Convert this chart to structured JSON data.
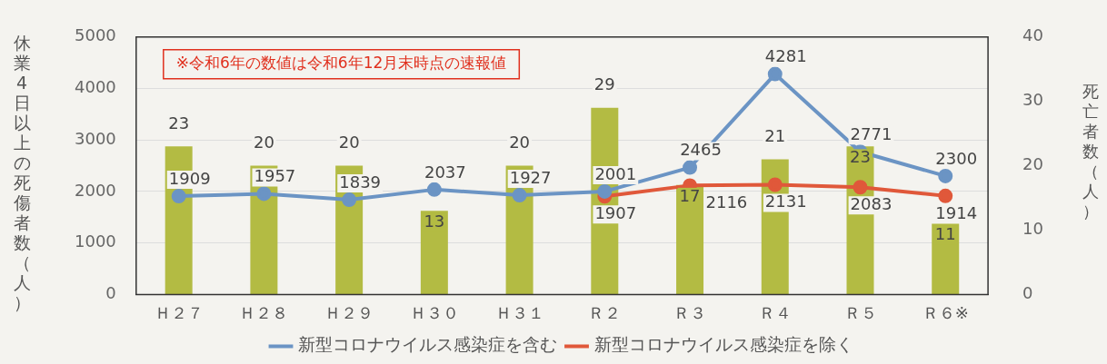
{
  "chart_data": {
    "type": "bar",
    "ylabel": "休業4日以上の死傷者数（人）",
    "y2label": "死亡者数（人）",
    "annotations": [
      "※令和6年の数値は令和6年12月末時点の速報値"
    ],
    "categories": [
      "Ｈ２７",
      "Ｈ２８",
      "Ｈ２９",
      "Ｈ３０",
      "Ｈ３１",
      "Ｒ２",
      "Ｒ３",
      "Ｒ４",
      "Ｒ５",
      "Ｒ６※"
    ],
    "series": [
      {
        "axis": "y2",
        "color": "#b3bb43",
        "values": [
          23,
          20,
          20,
          13,
          20,
          29,
          17,
          21,
          23,
          11
        ]
      },
      {
        "type": "line",
        "name": "新型コロナウイルス感染症を含む",
        "color": "#6b94c4",
        "values": [
          1909,
          1957,
          1839,
          2037,
          1927,
          2001,
          2465,
          4281,
          2771,
          2300
        ]
      },
      {
        "type": "line",
        "name": "新型コロナウイルス感染症を除く",
        "color": "#e0583a",
        "values": [
          null,
          null,
          null,
          null,
          null,
          1907,
          2116,
          2131,
          2083,
          1914
        ]
      }
    ],
    "ylim": [
      0,
      5000
    ],
    "yticks": [
      0,
      1000,
      2000,
      3000,
      4000,
      5000
    ],
    "y2lim": [
      0,
      40
    ],
    "y2ticks": [
      0,
      10,
      20,
      30,
      40
    ],
    "grid": "y",
    "legend": "bottom",
    "marker": "circle",
    "line_style": "solid",
    "data_labels": true
  }
}
